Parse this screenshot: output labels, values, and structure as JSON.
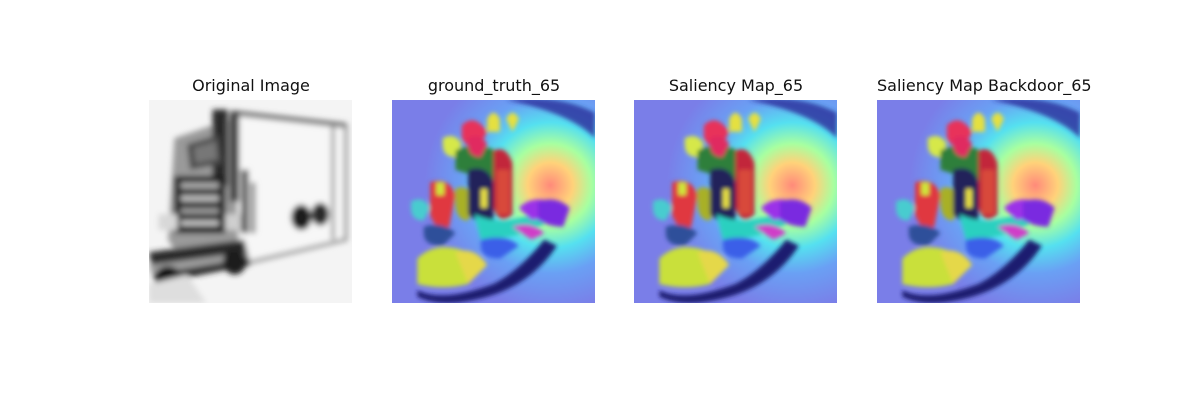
{
  "figure": {
    "panels": [
      {
        "title": "Original Image",
        "kind": "grayscale-truck"
      },
      {
        "title": "ground_truth_65",
        "kind": "saliency-overlay"
      },
      {
        "title": "Saliency Map_65",
        "kind": "saliency-overlay"
      },
      {
        "title": "Saliency Map Backdoor_65",
        "kind": "saliency-overlay"
      }
    ]
  }
}
